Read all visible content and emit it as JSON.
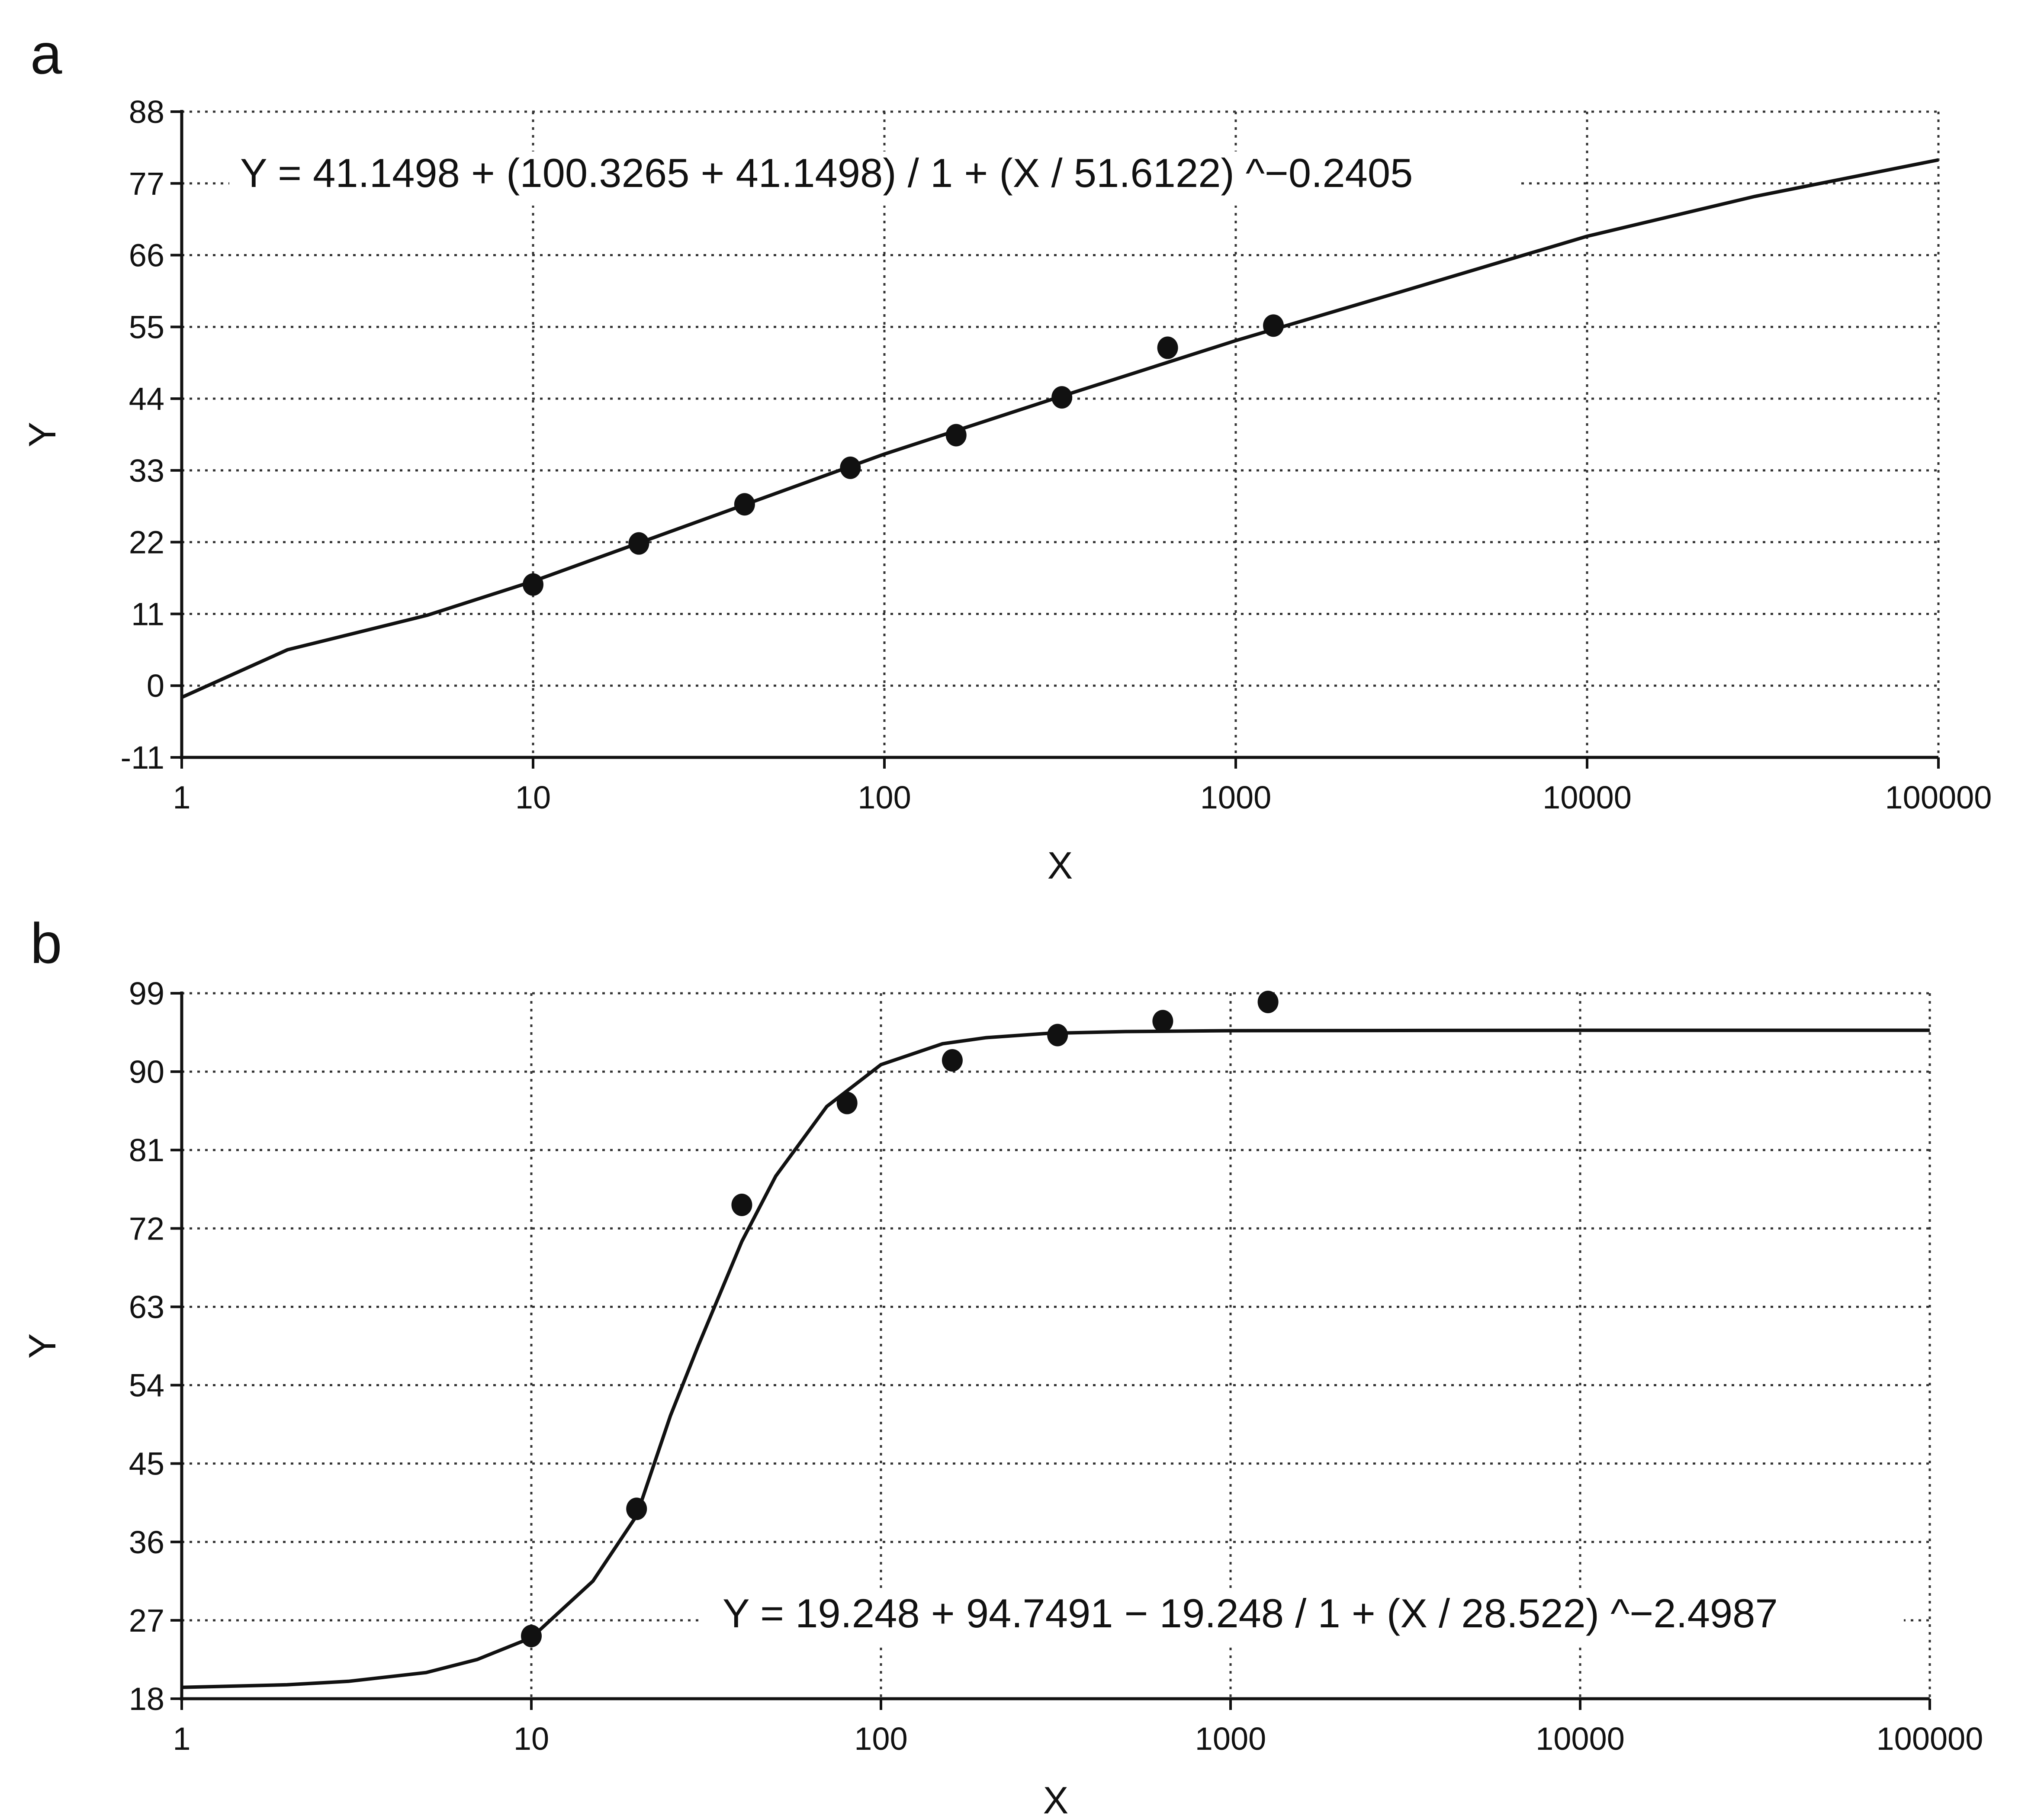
{
  "chart_data": [
    {
      "type": "scatter",
      "panel_label": "a",
      "title": "",
      "xlabel": "X",
      "ylabel": "Y",
      "x_scale": "log",
      "xlim": [
        1,
        100000
      ],
      "ylim": [
        -11,
        88
      ],
      "x_ticks": [
        1,
        10,
        100,
        1000,
        10000,
        100000
      ],
      "x_tick_labels": [
        "1",
        "10",
        "100",
        "1000",
        "10000",
        "100000"
      ],
      "y_ticks": [
        -11,
        0,
        11,
        22,
        33,
        44,
        55,
        66,
        77,
        88
      ],
      "y_tick_labels": [
        "-11",
        "0",
        "11",
        "22",
        "33",
        "44",
        "55",
        "66",
        "77",
        "88"
      ],
      "grid": true,
      "annotation": "Y = 41.1498 + (100.3265 + 41.1498) / 1 + (X / 51.6122) ^−0.2405",
      "series": [
        {
          "type": "scatter",
          "x": [
            10,
            20,
            40,
            80,
            160,
            320,
            640,
            1280
          ],
          "y": [
            15.5,
            21.8,
            27.8,
            33.4,
            38.4,
            44.2,
            51.8,
            55.2
          ]
        },
        {
          "type": "line",
          "x": [
            1,
            2,
            5,
            10,
            30,
            100,
            300,
            1000,
            3000,
            10000,
            30000,
            100000
          ],
          "y": [
            -1.8,
            5.5,
            10.8,
            16.0,
            25.3,
            35.5,
            43.9,
            52.9,
            60.5,
            68.9,
            75.0,
            80.6
          ]
        }
      ]
    },
    {
      "type": "scatter",
      "panel_label": "b",
      "title": "",
      "xlabel": "X",
      "ylabel": "Y",
      "x_scale": "log",
      "xlim": [
        1,
        100000
      ],
      "ylim": [
        18,
        99
      ],
      "x_ticks": [
        1,
        10,
        100,
        1000,
        10000,
        100000
      ],
      "x_tick_labels": [
        "1",
        "10",
        "100",
        "1000",
        "10000",
        "100000"
      ],
      "y_ticks": [
        18,
        27,
        36,
        45,
        54,
        63,
        72,
        81,
        90,
        99
      ],
      "y_tick_labels": [
        "18",
        "27",
        "36",
        "45",
        "54",
        "63",
        "72",
        "81",
        "90",
        "99"
      ],
      "grid": true,
      "annotation": "Y = 19.248 + 94.7491 − 19.248 / 1 + (X / 28.522) ^−2.4987",
      "series": [
        {
          "type": "scatter",
          "x": [
            10,
            20,
            40,
            80,
            160,
            320,
            640,
            1280
          ],
          "y": [
            25.2,
            39.8,
            74.7,
            86.4,
            91.3,
            94.2,
            95.8,
            98.0
          ]
        },
        {
          "type": "line",
          "x": [
            1,
            2,
            3,
            5,
            7,
            10,
            15,
            20,
            25,
            30,
            40,
            50,
            70,
            100,
            150,
            200,
            300,
            500,
            1000,
            10000,
            100000
          ],
          "y": [
            19.3,
            19.6,
            20.0,
            21.0,
            22.5,
            25.0,
            31.5,
            39.0,
            50.5,
            58.5,
            70.5,
            78.0,
            86.0,
            90.8,
            93.2,
            93.9,
            94.4,
            94.6,
            94.7,
            94.75,
            94.75
          ]
        }
      ]
    }
  ]
}
